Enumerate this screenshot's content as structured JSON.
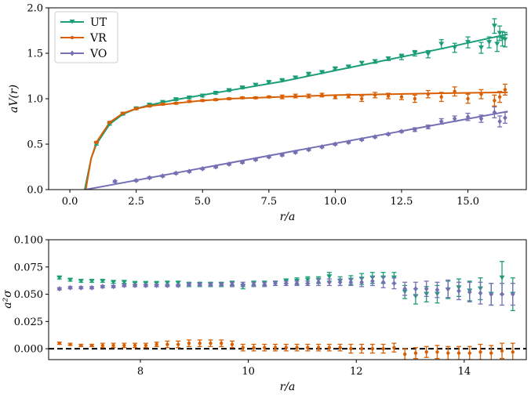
{
  "colors": {
    "UT": "#1b9e77",
    "VR": "#d95f02",
    "VO": "#7570b3",
    "zero_line": "#000000"
  },
  "chart_data": [
    {
      "type": "line",
      "title": "",
      "xlabel": "r/a",
      "ylabel": "aV(r)",
      "xlim": [
        -0.8,
        17.2
      ],
      "ylim": [
        0.0,
        2.0
      ],
      "xticks": [
        0.0,
        2.5,
        5.0,
        7.5,
        10.0,
        12.5,
        15.0
      ],
      "xtick_labels": [
        "0.0",
        "2.5",
        "5.0",
        "7.5",
        "10.0",
        "12.5",
        "15.0"
      ],
      "yticks": [
        0.0,
        0.5,
        1.0,
        1.5,
        2.0
      ],
      "ytick_labels": [
        "0.0",
        "0.5",
        "1.0",
        "1.5",
        "2.0"
      ],
      "legend": {
        "placement": "top-left",
        "entries": [
          "UT",
          "VR",
          "VO"
        ]
      },
      "fit_curves": [
        {
          "name": "UT",
          "x": [
            0.56,
            0.8,
            1.0,
            1.5,
            2.0,
            2.5,
            3.0,
            4.0,
            5.0,
            6.0,
            8.0,
            10.0,
            12.0,
            14.0,
            16.5
          ],
          "y": [
            0.0,
            0.34,
            0.5,
            0.72,
            0.83,
            0.89,
            0.93,
            0.99,
            1.04,
            1.09,
            1.19,
            1.31,
            1.43,
            1.55,
            1.71
          ]
        },
        {
          "name": "VR",
          "x": [
            0.6,
            0.8,
            1.0,
            1.5,
            2.0,
            2.5,
            3.0,
            4.0,
            5.0,
            6.0,
            8.0,
            10.0,
            12.0,
            14.0,
            16.5
          ],
          "y": [
            0.0,
            0.34,
            0.52,
            0.74,
            0.84,
            0.89,
            0.92,
            0.95,
            0.98,
            1.0,
            1.02,
            1.04,
            1.05,
            1.06,
            1.07
          ]
        },
        {
          "name": "VO",
          "x": [
            0.6,
            16.5
          ],
          "y": [
            0.0,
            0.86
          ]
        }
      ],
      "series": [
        {
          "name": "UT",
          "marker": "triangle-down",
          "x": [
            1.0,
            1.5,
            2.0,
            2.5,
            3.0,
            3.5,
            4.0,
            4.5,
            5.0,
            5.5,
            6.0,
            6.5,
            7.0,
            7.5,
            8.0,
            8.5,
            9.0,
            9.5,
            10.0,
            10.5,
            11.0,
            11.5,
            12.0,
            12.5,
            13.0,
            13.5,
            14.0,
            14.5,
            15.0,
            15.5,
            15.8,
            16.0,
            16.1,
            16.2,
            16.3,
            16.4
          ],
          "y": [
            0.5,
            0.72,
            0.83,
            0.89,
            0.93,
            0.96,
            0.99,
            1.01,
            1.03,
            1.06,
            1.09,
            1.12,
            1.15,
            1.18,
            1.2,
            1.23,
            1.27,
            1.29,
            1.33,
            1.35,
            1.39,
            1.41,
            1.44,
            1.46,
            1.5,
            1.49,
            1.6,
            1.56,
            1.62,
            1.56,
            1.62,
            1.8,
            1.6,
            1.72,
            1.66,
            1.65
          ],
          "err": [
            0.01,
            0.01,
            0.01,
            0.01,
            0.01,
            0.01,
            0.01,
            0.01,
            0.01,
            0.01,
            0.01,
            0.01,
            0.01,
            0.01,
            0.01,
            0.01,
            0.01,
            0.01,
            0.01,
            0.01,
            0.02,
            0.02,
            0.02,
            0.03,
            0.03,
            0.04,
            0.05,
            0.05,
            0.06,
            0.06,
            0.06,
            0.08,
            0.08,
            0.08,
            0.08,
            0.08
          ]
        },
        {
          "name": "VR",
          "marker": "point",
          "x": [
            1.0,
            1.5,
            2.0,
            2.5,
            3.0,
            3.5,
            4.0,
            4.5,
            5.0,
            5.5,
            6.0,
            6.5,
            7.0,
            7.5,
            8.0,
            8.5,
            9.0,
            9.5,
            10.0,
            10.5,
            11.0,
            11.5,
            12.0,
            12.5,
            13.0,
            13.5,
            14.0,
            14.5,
            15.0,
            15.5,
            16.0,
            16.2,
            16.4
          ],
          "y": [
            0.52,
            0.74,
            0.84,
            0.89,
            0.92,
            0.94,
            0.95,
            0.97,
            0.98,
            0.99,
            1.0,
            1.01,
            1.01,
            1.02,
            1.02,
            1.03,
            1.03,
            1.04,
            1.02,
            1.03,
            1.0,
            1.04,
            1.03,
            1.02,
            1.0,
            1.05,
            1.02,
            1.08,
            1.0,
            1.05,
            0.98,
            1.02,
            1.1
          ],
          "err": [
            0.01,
            0.01,
            0.01,
            0.01,
            0.01,
            0.01,
            0.01,
            0.01,
            0.01,
            0.01,
            0.01,
            0.01,
            0.01,
            0.01,
            0.02,
            0.02,
            0.02,
            0.02,
            0.02,
            0.02,
            0.03,
            0.03,
            0.03,
            0.03,
            0.04,
            0.04,
            0.05,
            0.05,
            0.05,
            0.05,
            0.06,
            0.06,
            0.06
          ]
        },
        {
          "name": "VO",
          "marker": "diamond",
          "x": [
            1.7,
            2.5,
            3.0,
            3.5,
            4.0,
            4.5,
            5.0,
            5.5,
            6.0,
            6.5,
            7.0,
            7.5,
            8.0,
            8.5,
            9.0,
            9.5,
            10.0,
            10.5,
            11.0,
            11.5,
            12.0,
            12.5,
            13.0,
            13.5,
            14.0,
            14.5,
            15.0,
            15.5,
            16.0,
            16.2,
            16.4
          ],
          "y": [
            0.09,
            0.1,
            0.13,
            0.15,
            0.18,
            0.2,
            0.23,
            0.25,
            0.28,
            0.3,
            0.33,
            0.36,
            0.38,
            0.41,
            0.44,
            0.47,
            0.5,
            0.52,
            0.55,
            0.58,
            0.61,
            0.64,
            0.66,
            0.69,
            0.75,
            0.78,
            0.8,
            0.78,
            0.85,
            0.75,
            0.79
          ],
          "err": [
            0.01,
            0.01,
            0.01,
            0.01,
            0.01,
            0.01,
            0.01,
            0.01,
            0.01,
            0.01,
            0.01,
            0.01,
            0.01,
            0.01,
            0.01,
            0.01,
            0.01,
            0.01,
            0.01,
            0.01,
            0.01,
            0.01,
            0.02,
            0.02,
            0.03,
            0.03,
            0.04,
            0.04,
            0.06,
            0.06,
            0.06
          ]
        }
      ]
    },
    {
      "type": "scatter",
      "title": "",
      "xlabel": "r/a",
      "ylabel": "a²σ",
      "xlim": [
        6.3,
        15.15
      ],
      "ylim": [
        -0.01,
        0.1
      ],
      "xticks": [
        8,
        10,
        12,
        14
      ],
      "xtick_labels": [
        "8",
        "10",
        "12",
        "14"
      ],
      "yticks": [
        0.0,
        0.025,
        0.05,
        0.075,
        0.1
      ],
      "ytick_labels": [
        "0.000",
        "0.025",
        "0.050",
        "0.075",
        "0.100"
      ],
      "reference_line": {
        "y": 0.0,
        "style": "dashed"
      },
      "series": [
        {
          "name": "UT",
          "marker": "triangle-down",
          "x": [
            6.5,
            6.7,
            6.9,
            7.1,
            7.3,
            7.5,
            7.7,
            7.9,
            8.1,
            8.3,
            8.5,
            8.7,
            8.9,
            9.1,
            9.3,
            9.5,
            9.7,
            9.9,
            10.1,
            10.3,
            10.5,
            10.7,
            10.9,
            11.1,
            11.3,
            11.5,
            11.7,
            11.9,
            12.1,
            12.3,
            12.5,
            12.7,
            12.9,
            13.1,
            13.3,
            13.5,
            13.7,
            13.9,
            14.1,
            14.3,
            14.5,
            14.7,
            14.9
          ],
          "y": [
            0.065,
            0.063,
            0.062,
            0.062,
            0.062,
            0.061,
            0.061,
            0.06,
            0.06,
            0.06,
            0.06,
            0.06,
            0.059,
            0.059,
            0.059,
            0.059,
            0.06,
            0.057,
            0.06,
            0.06,
            0.06,
            0.062,
            0.062,
            0.063,
            0.063,
            0.066,
            0.062,
            0.063,
            0.064,
            0.065,
            0.065,
            0.065,
            0.052,
            0.048,
            0.05,
            0.05,
            0.054,
            0.056,
            0.053,
            0.055,
            0.05,
            0.065,
            0.05
          ],
          "err": [
            0.001,
            0.001,
            0.001,
            0.001,
            0.001,
            0.001,
            0.001,
            0.001,
            0.001,
            0.001,
            0.002,
            0.002,
            0.002,
            0.002,
            0.002,
            0.002,
            0.002,
            0.002,
            0.002,
            0.002,
            0.002,
            0.002,
            0.003,
            0.003,
            0.003,
            0.004,
            0.004,
            0.004,
            0.005,
            0.005,
            0.005,
            0.005,
            0.006,
            0.007,
            0.007,
            0.008,
            0.008,
            0.008,
            0.009,
            0.01,
            0.01,
            0.015,
            0.015
          ]
        },
        {
          "name": "VR",
          "marker": "point",
          "x": [
            6.5,
            6.7,
            6.9,
            7.1,
            7.3,
            7.5,
            7.7,
            7.9,
            8.1,
            8.3,
            8.5,
            8.7,
            8.9,
            9.1,
            9.3,
            9.5,
            9.7,
            9.9,
            10.1,
            10.3,
            10.5,
            10.7,
            10.9,
            11.1,
            11.3,
            11.5,
            11.7,
            11.9,
            12.1,
            12.3,
            12.5,
            12.7,
            12.9,
            13.1,
            13.3,
            13.5,
            13.7,
            13.9,
            14.1,
            14.3,
            14.5,
            14.7,
            14.9
          ],
          "y": [
            0.005,
            0.004,
            0.003,
            0.003,
            0.003,
            0.003,
            0.003,
            0.003,
            0.003,
            0.004,
            0.004,
            0.004,
            0.005,
            0.005,
            0.005,
            0.005,
            0.004,
            0.001,
            0.001,
            0.001,
            0.001,
            0.001,
            0.001,
            0.001,
            0.001,
            0.001,
            0.001,
            0.0,
            0.0,
            0.0,
            0.0,
            0.001,
            -0.005,
            -0.004,
            -0.003,
            -0.003,
            -0.004,
            -0.004,
            -0.004,
            -0.003,
            -0.004,
            -0.002,
            -0.003
          ],
          "err": [
            0.001,
            0.001,
            0.001,
            0.001,
            0.002,
            0.002,
            0.002,
            0.002,
            0.002,
            0.002,
            0.003,
            0.003,
            0.003,
            0.003,
            0.003,
            0.003,
            0.003,
            0.003,
            0.003,
            0.003,
            0.003,
            0.003,
            0.003,
            0.003,
            0.003,
            0.003,
            0.003,
            0.004,
            0.004,
            0.004,
            0.004,
            0.004,
            0.005,
            0.005,
            0.005,
            0.006,
            0.006,
            0.006,
            0.006,
            0.007,
            0.007,
            0.007,
            0.008
          ]
        },
        {
          "name": "VO",
          "marker": "diamond",
          "x": [
            6.5,
            6.7,
            6.9,
            7.1,
            7.3,
            7.5,
            7.7,
            7.9,
            8.1,
            8.3,
            8.5,
            8.7,
            8.9,
            9.1,
            9.3,
            9.5,
            9.7,
            9.9,
            10.1,
            10.3,
            10.5,
            10.7,
            10.9,
            11.1,
            11.3,
            11.5,
            11.7,
            11.9,
            12.1,
            12.3,
            12.5,
            12.7,
            12.9,
            13.1,
            13.3,
            13.5,
            13.7,
            13.9,
            14.1,
            14.3,
            14.5,
            14.7,
            14.9
          ],
          "y": [
            0.055,
            0.056,
            0.056,
            0.056,
            0.057,
            0.057,
            0.058,
            0.058,
            0.058,
            0.058,
            0.058,
            0.058,
            0.059,
            0.059,
            0.059,
            0.059,
            0.059,
            0.059,
            0.059,
            0.059,
            0.06,
            0.06,
            0.06,
            0.06,
            0.061,
            0.061,
            0.061,
            0.061,
            0.061,
            0.062,
            0.061,
            0.06,
            0.055,
            0.055,
            0.055,
            0.054,
            0.055,
            0.053,
            0.052,
            0.051,
            0.05,
            0.05,
            0.05
          ],
          "err": [
            0.001,
            0.001,
            0.001,
            0.001,
            0.001,
            0.001,
            0.001,
            0.001,
            0.001,
            0.001,
            0.001,
            0.001,
            0.001,
            0.001,
            0.001,
            0.001,
            0.002,
            0.002,
            0.002,
            0.002,
            0.002,
            0.002,
            0.002,
            0.002,
            0.003,
            0.003,
            0.003,
            0.003,
            0.004,
            0.004,
            0.005,
            0.005,
            0.006,
            0.006,
            0.007,
            0.007,
            0.008,
            0.008,
            0.009,
            0.01,
            0.01,
            0.01,
            0.01
          ]
        }
      ]
    }
  ]
}
